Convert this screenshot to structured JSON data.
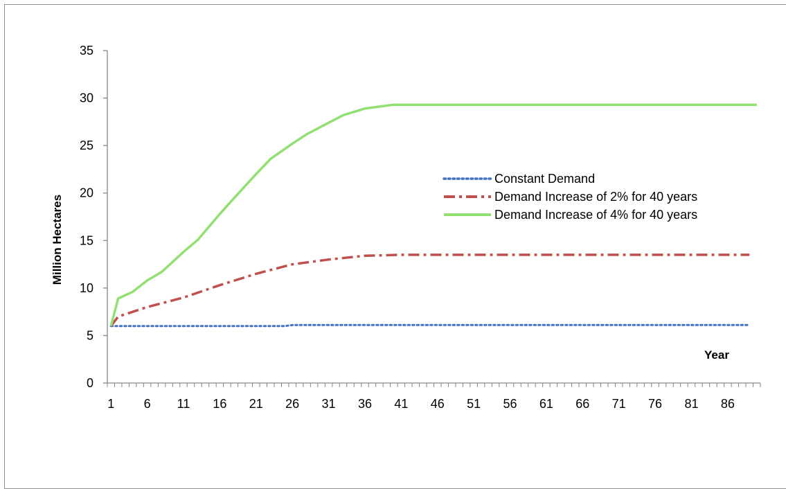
{
  "chart_data": {
    "type": "line",
    "xlabel": "Year",
    "ylabel": "Million Hectares",
    "ylim": [
      0,
      35
    ],
    "yticks": [
      0,
      5,
      10,
      15,
      20,
      25,
      30,
      35
    ],
    "xlim": [
      1,
      90
    ],
    "xtick_labels": [
      1,
      6,
      11,
      16,
      21,
      26,
      31,
      36,
      41,
      46,
      51,
      56,
      61,
      66,
      71,
      76,
      81,
      86
    ],
    "grid": false,
    "legend_position": "center-right",
    "series": [
      {
        "name": "Constant Demand",
        "color": "#4472C4",
        "style": "dotted",
        "points": [
          [
            1,
            6.0
          ],
          [
            25,
            6.0
          ],
          [
            26,
            6.1
          ],
          [
            89,
            6.1
          ]
        ]
      },
      {
        "name": "Demand Increase of 2% for 40 years",
        "color": "#C0504D",
        "style": "dash-dot",
        "points": [
          [
            1,
            6.0
          ],
          [
            2,
            7.0
          ],
          [
            6,
            8.0
          ],
          [
            11,
            9.0
          ],
          [
            16,
            10.3
          ],
          [
            21,
            11.5
          ],
          [
            26,
            12.5
          ],
          [
            31,
            13.0
          ],
          [
            36,
            13.4
          ],
          [
            41,
            13.5
          ],
          [
            89,
            13.5
          ]
        ]
      },
      {
        "name": "Demand Increase of 4% for 40 years",
        "color": "#92E072",
        "style": "solid",
        "points": [
          [
            1,
            6.0
          ],
          [
            2,
            8.9
          ],
          [
            4,
            9.6
          ],
          [
            6,
            10.8
          ],
          [
            8,
            11.7
          ],
          [
            11,
            13.8
          ],
          [
            13,
            15.1
          ],
          [
            16,
            17.8
          ],
          [
            18,
            19.5
          ],
          [
            21,
            22.0
          ],
          [
            23,
            23.6
          ],
          [
            26,
            25.2
          ],
          [
            28,
            26.2
          ],
          [
            31,
            27.4
          ],
          [
            33,
            28.2
          ],
          [
            36,
            28.9
          ],
          [
            38,
            29.1
          ],
          [
            40,
            29.3
          ],
          [
            90,
            29.3
          ]
        ]
      }
    ]
  }
}
